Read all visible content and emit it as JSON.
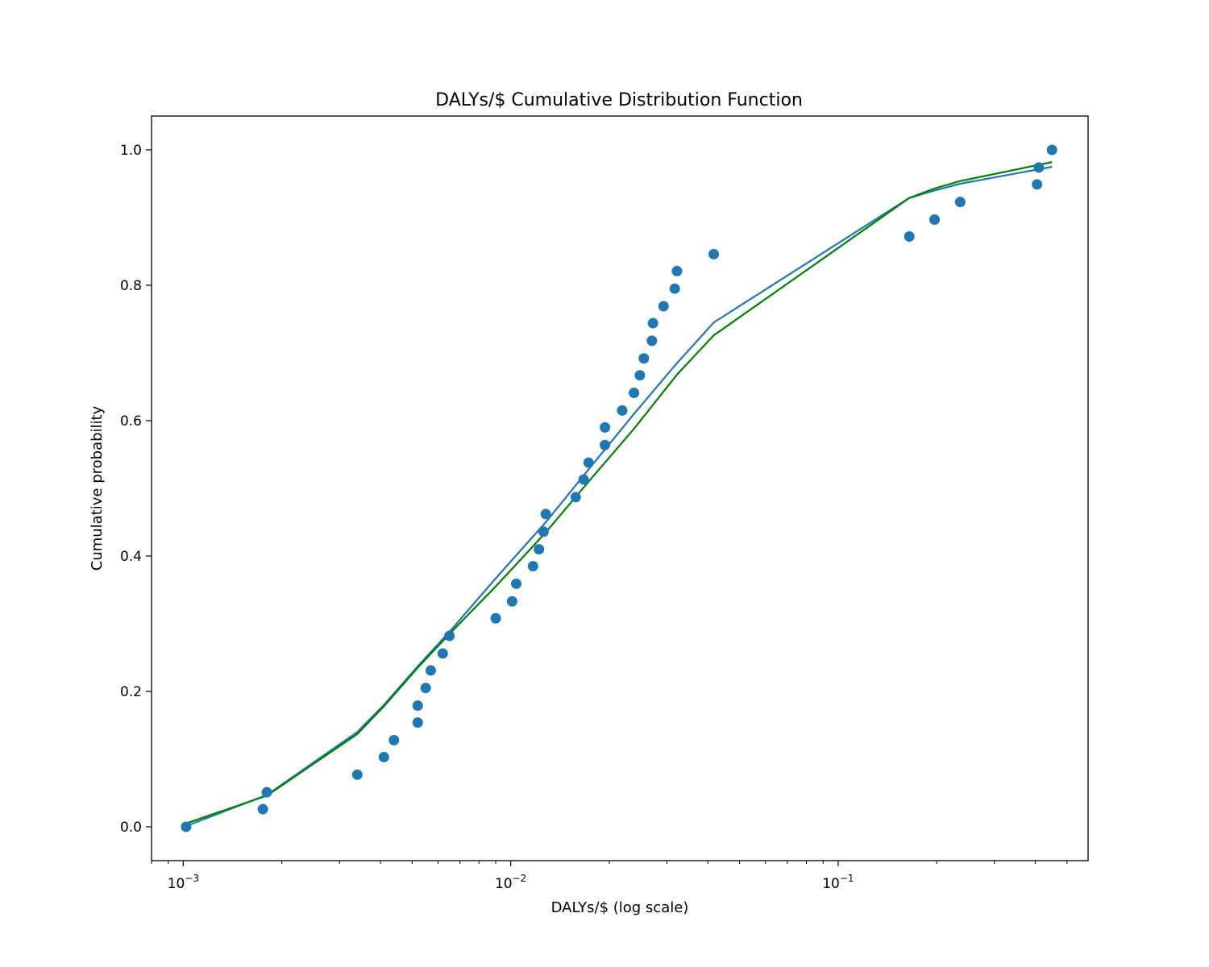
{
  "chart_data": {
    "type": "scatter",
    "title": "DALYs/$ Cumulative Distribution Function",
    "xlabel": "DALYs/$ (log scale)",
    "ylabel": "Cumulative probability",
    "xscale": "log",
    "xlim": [
      0.0008,
      0.58
    ],
    "ylim": [
      -0.05,
      1.05
    ],
    "grid": false,
    "legend": "none",
    "x_ticks": [
      {
        "value": 0.001,
        "base": "10",
        "exp": "−3"
      },
      {
        "value": 0.01,
        "base": "10",
        "exp": "−2"
      },
      {
        "value": 0.1,
        "base": "10",
        "exp": "−1"
      }
    ],
    "y_ticks": [
      {
        "value": 0.0,
        "label": "0.0"
      },
      {
        "value": 0.2,
        "label": "0.2"
      },
      {
        "value": 0.4,
        "label": "0.4"
      },
      {
        "value": 0.6,
        "label": "0.6"
      },
      {
        "value": 0.8,
        "label": "0.8"
      },
      {
        "value": 1.0,
        "label": "1.0"
      }
    ],
    "scatter": {
      "color": "#1f77b4",
      "points": [
        [
          0.00102,
          0.0
        ],
        [
          0.00175,
          0.026
        ],
        [
          0.0018,
          0.051
        ],
        [
          0.0034,
          0.077
        ],
        [
          0.0041,
          0.103
        ],
        [
          0.0044,
          0.128
        ],
        [
          0.0052,
          0.154
        ],
        [
          0.0052,
          0.179
        ],
        [
          0.0055,
          0.205
        ],
        [
          0.0057,
          0.231
        ],
        [
          0.0062,
          0.256
        ],
        [
          0.0065,
          0.282
        ],
        [
          0.009,
          0.308
        ],
        [
          0.0101,
          0.333
        ],
        [
          0.0104,
          0.359
        ],
        [
          0.0117,
          0.385
        ],
        [
          0.0122,
          0.41
        ],
        [
          0.0126,
          0.436
        ],
        [
          0.0128,
          0.462
        ],
        [
          0.0158,
          0.487
        ],
        [
          0.0167,
          0.513
        ],
        [
          0.0173,
          0.538
        ],
        [
          0.0194,
          0.564
        ],
        [
          0.0194,
          0.59
        ],
        [
          0.0219,
          0.615
        ],
        [
          0.0238,
          0.641
        ],
        [
          0.0248,
          0.667
        ],
        [
          0.0255,
          0.692
        ],
        [
          0.027,
          0.718
        ],
        [
          0.0272,
          0.744
        ],
        [
          0.0293,
          0.769
        ],
        [
          0.0317,
          0.795
        ],
        [
          0.0322,
          0.821
        ],
        [
          0.0417,
          0.846
        ],
        [
          0.165,
          0.872
        ],
        [
          0.197,
          0.897
        ],
        [
          0.236,
          0.923
        ],
        [
          0.405,
          0.949
        ],
        [
          0.41,
          0.974
        ],
        [
          0.45,
          1.0
        ]
      ]
    },
    "series": [
      {
        "color": "#1f77b4",
        "points": [
          [
            0.00102,
            0.001
          ],
          [
            0.0018,
            0.047
          ],
          [
            0.0034,
            0.14
          ],
          [
            0.0041,
            0.18
          ],
          [
            0.0052,
            0.237
          ],
          [
            0.0065,
            0.288
          ],
          [
            0.009,
            0.367
          ],
          [
            0.0128,
            0.45
          ],
          [
            0.0173,
            0.528
          ],
          [
            0.0238,
            0.61
          ],
          [
            0.0322,
            0.685
          ],
          [
            0.0417,
            0.745
          ],
          [
            0.165,
            0.929
          ],
          [
            0.197,
            0.94
          ],
          [
            0.236,
            0.95
          ],
          [
            0.45,
            0.975
          ]
        ]
      },
      {
        "color": "#008000",
        "points": [
          [
            0.00102,
            0.005
          ],
          [
            0.0018,
            0.046
          ],
          [
            0.0034,
            0.137
          ],
          [
            0.0041,
            0.178
          ],
          [
            0.0052,
            0.235
          ],
          [
            0.0065,
            0.285
          ],
          [
            0.009,
            0.355
          ],
          [
            0.0128,
            0.435
          ],
          [
            0.0173,
            0.51
          ],
          [
            0.0238,
            0.588
          ],
          [
            0.0322,
            0.668
          ],
          [
            0.0417,
            0.726
          ],
          [
            0.165,
            0.929
          ],
          [
            0.197,
            0.943
          ],
          [
            0.236,
            0.954
          ],
          [
            0.45,
            0.982
          ]
        ]
      }
    ]
  }
}
